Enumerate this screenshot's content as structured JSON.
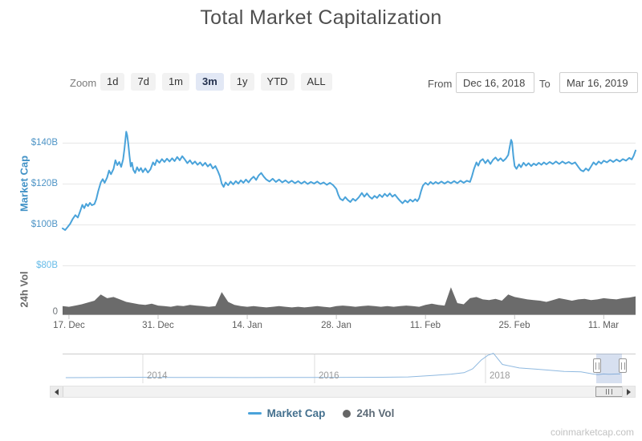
{
  "title": "Total Market Capitalization",
  "watermark": "coinmarketcap.com",
  "range_selector": {
    "zoom_label": "Zoom",
    "buttons": [
      {
        "label": "1d",
        "selected": false
      },
      {
        "label": "7d",
        "selected": false
      },
      {
        "label": "1m",
        "selected": false
      },
      {
        "label": "3m",
        "selected": true
      },
      {
        "label": "1y",
        "selected": false
      },
      {
        "label": "YTD",
        "selected": false
      },
      {
        "label": "ALL",
        "selected": false
      }
    ],
    "from_label": "From",
    "from_value": "Dec 16, 2018",
    "to_label": "To",
    "to_value": "Mar 16, 2019"
  },
  "colors": {
    "market_cap_line": "#4aa3da",
    "volume_fill": "#6b6b6b",
    "grid": "#e7e7e7",
    "axis_line": "#cfcfcf",
    "navigator_line": "#8fb9e0"
  },
  "xaxis": {
    "tick_labels": [
      "17. Dec",
      "31. Dec",
      "14. Jan",
      "28. Jan",
      "11. Feb",
      "25. Feb",
      "11. Mar"
    ],
    "tick_days": [
      1,
      15,
      29,
      43,
      57,
      71,
      85
    ]
  },
  "navigator": {
    "year_labels": [
      "2014",
      "2016",
      "2018"
    ]
  },
  "legend": [
    {
      "label": "Market Cap",
      "marker": "line"
    },
    {
      "label": "24h Vol",
      "marker": "circle"
    }
  ],
  "chart_data": [
    {
      "type": "line",
      "name": "Market Cap",
      "ylabel": "Market Cap",
      "unit": "USD billions",
      "x_unit": "days since Dec 16, 2018 (0 = Dec 16, 90 = Mar 16)",
      "yticks": [
        {
          "label": "$100B",
          "value": 100
        },
        {
          "label": "$120B",
          "value": 120
        },
        {
          "label": "$140B",
          "value": 140
        }
      ],
      "ylim": [
        92.5,
        148
      ],
      "points": [
        [
          0,
          98.3
        ],
        [
          0.4,
          97.5
        ],
        [
          0.8,
          99.0
        ],
        [
          1.2,
          100.6
        ],
        [
          1.6,
          103.0
        ],
        [
          2,
          104.8
        ],
        [
          2.4,
          103.6
        ],
        [
          2.8,
          107.0
        ],
        [
          3.1,
          109.8
        ],
        [
          3.4,
          108.2
        ],
        [
          3.7,
          110.3
        ],
        [
          4,
          109.2
        ],
        [
          4.3,
          110.8
        ],
        [
          4.6,
          109.6
        ],
        [
          5,
          110.2
        ],
        [
          5.3,
          112.6
        ],
        [
          5.6,
          116.5
        ],
        [
          6,
          120.8
        ],
        [
          6.3,
          122.4
        ],
        [
          6.6,
          120.6
        ],
        [
          7,
          123.2
        ],
        [
          7.3,
          126.6
        ],
        [
          7.6,
          124.8
        ],
        [
          8,
          127.4
        ],
        [
          8.3,
          131.6
        ],
        [
          8.6,
          129.2
        ],
        [
          8.9,
          130.8
        ],
        [
          9.2,
          128.4
        ],
        [
          9.5,
          132.0
        ],
        [
          9.7,
          137.0
        ],
        [
          10,
          145.6
        ],
        [
          10.15,
          143.8
        ],
        [
          10.3,
          140.2
        ],
        [
          10.5,
          134.0
        ],
        [
          10.7,
          128.6
        ],
        [
          10.9,
          130.4
        ],
        [
          11.1,
          127.0
        ],
        [
          11.4,
          125.4
        ],
        [
          11.7,
          128.2
        ],
        [
          12,
          126.4
        ],
        [
          12.3,
          127.8
        ],
        [
          12.6,
          125.8
        ],
        [
          13,
          127.6
        ],
        [
          13.4,
          125.6
        ],
        [
          13.8,
          127.2
        ],
        [
          14.2,
          130.6
        ],
        [
          14.5,
          129.2
        ],
        [
          14.8,
          131.8
        ],
        [
          15.2,
          130.4
        ],
        [
          15.6,
          132.2
        ],
        [
          16,
          130.8
        ],
        [
          16.4,
          132.4
        ],
        [
          16.8,
          131.0
        ],
        [
          17.2,
          132.6
        ],
        [
          17.6,
          131.2
        ],
        [
          18,
          133.2
        ],
        [
          18.4,
          131.6
        ],
        [
          18.8,
          133.6
        ],
        [
          19.2,
          132.0
        ],
        [
          19.6,
          130.2
        ],
        [
          20,
          131.6
        ],
        [
          20.4,
          129.8
        ],
        [
          20.8,
          131.0
        ],
        [
          21.2,
          129.4
        ],
        [
          21.6,
          130.6
        ],
        [
          22,
          129.0
        ],
        [
          22.4,
          130.4
        ],
        [
          22.8,
          128.6
        ],
        [
          23.2,
          129.8
        ],
        [
          23.6,
          127.6
        ],
        [
          24,
          128.8
        ],
        [
          24.4,
          126.2
        ],
        [
          24.7,
          123.8
        ],
        [
          25,
          120.2
        ],
        [
          25.3,
          118.6
        ],
        [
          25.6,
          120.8
        ],
        [
          26,
          119.4
        ],
        [
          26.4,
          121.2
        ],
        [
          26.8,
          119.8
        ],
        [
          27.2,
          121.4
        ],
        [
          27.6,
          120.2
        ],
        [
          28,
          121.8
        ],
        [
          28.4,
          120.6
        ],
        [
          28.8,
          122.2
        ],
        [
          29.2,
          120.8
        ],
        [
          29.6,
          122.4
        ],
        [
          30,
          123.6
        ],
        [
          30.4,
          122.0
        ],
        [
          30.8,
          124.2
        ],
        [
          31.2,
          125.4
        ],
        [
          31.6,
          123.6
        ],
        [
          32,
          122.2
        ],
        [
          32.5,
          121.2
        ],
        [
          33,
          122.6
        ],
        [
          33.5,
          121.0
        ],
        [
          34,
          122.2
        ],
        [
          34.5,
          120.8
        ],
        [
          35,
          121.8
        ],
        [
          35.5,
          120.6
        ],
        [
          36,
          121.6
        ],
        [
          36.5,
          120.4
        ],
        [
          37,
          121.4
        ],
        [
          37.5,
          120.2
        ],
        [
          38,
          121.2
        ],
        [
          38.5,
          120.0
        ],
        [
          39,
          121.0
        ],
        [
          39.5,
          120.2
        ],
        [
          40,
          121.2
        ],
        [
          40.5,
          120.0
        ],
        [
          41,
          120.8
        ],
        [
          41.5,
          119.6
        ],
        [
          42,
          120.6
        ],
        [
          42.5,
          119.4
        ],
        [
          43,
          117.6
        ],
        [
          43.3,
          114.8
        ],
        [
          43.6,
          112.8
        ],
        [
          44,
          112.0
        ],
        [
          44.4,
          113.6
        ],
        [
          44.8,
          112.2
        ],
        [
          45.2,
          111.2
        ],
        [
          45.6,
          112.8
        ],
        [
          46,
          111.8
        ],
        [
          46.5,
          113.4
        ],
        [
          47,
          115.6
        ],
        [
          47.4,
          113.8
        ],
        [
          47.8,
          115.4
        ],
        [
          48.2,
          113.8
        ],
        [
          48.6,
          112.8
        ],
        [
          49,
          114.2
        ],
        [
          49.4,
          113.2
        ],
        [
          49.8,
          114.8
        ],
        [
          50.2,
          113.6
        ],
        [
          50.6,
          115.2
        ],
        [
          51,
          114.0
        ],
        [
          51.4,
          115.4
        ],
        [
          51.8,
          113.8
        ],
        [
          52.2,
          114.8
        ],
        [
          52.6,
          113.2
        ],
        [
          53,
          111.8
        ],
        [
          53.4,
          110.6
        ],
        [
          53.8,
          112.0
        ],
        [
          54.2,
          111.0
        ],
        [
          54.6,
          112.4
        ],
        [
          55,
          111.4
        ],
        [
          55.4,
          112.6
        ],
        [
          55.7,
          111.6
        ],
        [
          56,
          113.0
        ],
        [
          56.3,
          116.4
        ],
        [
          56.6,
          119.2
        ],
        [
          57,
          120.6
        ],
        [
          57.4,
          119.6
        ],
        [
          57.8,
          121.0
        ],
        [
          58.2,
          120.0
        ],
        [
          58.6,
          121.0
        ],
        [
          59,
          120.2
        ],
        [
          59.5,
          121.2
        ],
        [
          60,
          120.2
        ],
        [
          60.5,
          121.2
        ],
        [
          61,
          120.4
        ],
        [
          61.5,
          121.4
        ],
        [
          62,
          120.4
        ],
        [
          62.5,
          121.6
        ],
        [
          63,
          120.6
        ],
        [
          63.5,
          121.6
        ],
        [
          64,
          121.0
        ],
        [
          64.3,
          123.8
        ],
        [
          64.6,
          127.2
        ],
        [
          65,
          130.6
        ],
        [
          65.3,
          129.0
        ],
        [
          65.6,
          131.2
        ],
        [
          66,
          132.2
        ],
        [
          66.4,
          130.2
        ],
        [
          66.8,
          131.8
        ],
        [
          67.2,
          129.8
        ],
        [
          67.6,
          131.8
        ],
        [
          68,
          133.0
        ],
        [
          68.4,
          131.4
        ],
        [
          68.8,
          132.6
        ],
        [
          69.2,
          131.2
        ],
        [
          69.6,
          132.4
        ],
        [
          70,
          134.2
        ],
        [
          70.25,
          138.4
        ],
        [
          70.45,
          141.6
        ],
        [
          70.6,
          140.4
        ],
        [
          70.8,
          133.6
        ],
        [
          71,
          128.8
        ],
        [
          71.3,
          127.4
        ],
        [
          71.7,
          129.6
        ],
        [
          72,
          128.2
        ],
        [
          72.4,
          130.4
        ],
        [
          72.8,
          129.0
        ],
        [
          73.2,
          130.2
        ],
        [
          73.6,
          128.8
        ],
        [
          74,
          130.0
        ],
        [
          74.4,
          129.2
        ],
        [
          74.8,
          130.4
        ],
        [
          75.2,
          129.4
        ],
        [
          75.6,
          130.6
        ],
        [
          76,
          129.6
        ],
        [
          76.5,
          130.8
        ],
        [
          77,
          129.8
        ],
        [
          77.5,
          131.0
        ],
        [
          78,
          129.8
        ],
        [
          78.5,
          131.0
        ],
        [
          79,
          130.0
        ],
        [
          79.5,
          130.8
        ],
        [
          80,
          129.8
        ],
        [
          80.5,
          130.6
        ],
        [
          81,
          128.4
        ],
        [
          81.4,
          126.8
        ],
        [
          81.8,
          126.2
        ],
        [
          82.2,
          127.6
        ],
        [
          82.6,
          126.6
        ],
        [
          83,
          128.6
        ],
        [
          83.4,
          130.6
        ],
        [
          83.8,
          129.4
        ],
        [
          84.2,
          131.0
        ],
        [
          84.6,
          130.0
        ],
        [
          85,
          131.4
        ],
        [
          85.5,
          130.6
        ],
        [
          86,
          131.8
        ],
        [
          86.5,
          130.8
        ],
        [
          87,
          132.0
        ],
        [
          87.5,
          131.0
        ],
        [
          88,
          132.2
        ],
        [
          88.5,
          131.4
        ],
        [
          89,
          132.8
        ],
        [
          89.4,
          132.0
        ],
        [
          89.7,
          133.8
        ],
        [
          90,
          136.4
        ]
      ]
    },
    {
      "type": "area",
      "name": "24h Vol",
      "ylabel": "24h Vol",
      "unit": "USD billions",
      "x_unit": "daily values, day 0 = Dec 16, 2018",
      "yticks": [
        {
          "label": "0",
          "value": 0
        },
        {
          "label": "$80B",
          "value": 80
        }
      ],
      "ylim": [
        0,
        80
      ],
      "values": [
        14,
        13,
        15,
        17,
        20,
        23,
        33,
        27,
        29,
        25,
        21,
        19,
        17,
        16,
        18,
        15,
        14,
        13,
        15,
        14,
        16,
        15,
        14,
        13,
        14,
        37,
        21,
        16,
        14,
        13,
        14,
        13,
        12,
        13,
        14,
        13,
        12,
        13,
        12,
        13,
        14,
        13,
        12,
        14,
        15,
        14,
        13,
        14,
        15,
        14,
        13,
        14,
        13,
        14,
        15,
        14,
        13,
        16,
        18,
        16,
        15,
        45,
        19,
        17,
        27,
        29,
        25,
        24,
        26,
        23,
        33,
        29,
        27,
        25,
        24,
        23,
        21,
        24,
        27,
        25,
        23,
        25,
        26,
        24,
        25,
        27,
        26,
        25,
        27,
        28,
        30
      ]
    },
    {
      "type": "line",
      "name": "navigator history (total market cap)",
      "unit": "USD billions",
      "x_unit": "calendar year (fractional)",
      "points": [
        [
          2013.1,
          1
        ],
        [
          2013.4,
          1.5
        ],
        [
          2013.95,
          15
        ],
        [
          2014.1,
          10
        ],
        [
          2014.4,
          8
        ],
        [
          2014.8,
          5
        ],
        [
          2015.2,
          4
        ],
        [
          2015.6,
          4.5
        ],
        [
          2016.0,
          8
        ],
        [
          2016.4,
          11
        ],
        [
          2016.8,
          13
        ],
        [
          2017.1,
          25
        ],
        [
          2017.4,
          80
        ],
        [
          2017.6,
          120
        ],
        [
          2017.75,
          170
        ],
        [
          2017.85,
          300
        ],
        [
          2017.95,
          600
        ],
        [
          2018.02,
          760
        ],
        [
          2018.07,
          830
        ],
        [
          2018.15,
          450
        ],
        [
          2018.3,
          330
        ],
        [
          2018.45,
          290
        ],
        [
          2018.55,
          260
        ],
        [
          2018.7,
          210
        ],
        [
          2018.85,
          200
        ],
        [
          2018.95,
          130
        ],
        [
          2019.0,
          105
        ],
        [
          2019.05,
          125
        ],
        [
          2019.1,
          115
        ],
        [
          2019.15,
          122
        ],
        [
          2019.2,
          132
        ]
      ]
    }
  ]
}
